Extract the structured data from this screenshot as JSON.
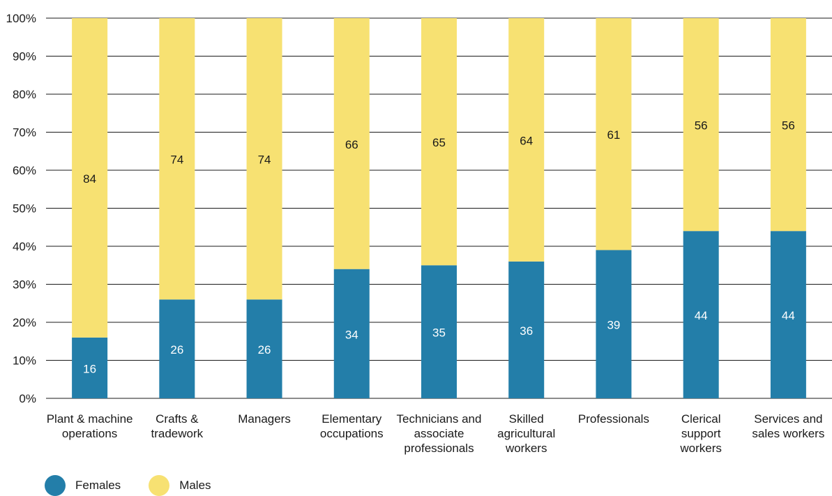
{
  "chart_data": {
    "type": "bar",
    "stacked": true,
    "categories": [
      [
        "Plant & machine",
        "operations"
      ],
      [
        "Crafts &",
        "tradework"
      ],
      [
        "Managers"
      ],
      [
        "Elementary",
        "occupations"
      ],
      [
        "Technicians and",
        "associate",
        "professionals"
      ],
      [
        "Skilled",
        "agricultural",
        "workers"
      ],
      [
        "Professionals"
      ],
      [
        "Clerical",
        "support",
        "workers"
      ],
      [
        "Services and",
        "sales workers"
      ]
    ],
    "series": [
      {
        "name": "Females",
        "color": "#237ea9",
        "label_color": "#ffffff",
        "values": [
          16,
          26,
          26,
          34,
          35,
          36,
          39,
          44,
          44
        ]
      },
      {
        "name": "Males",
        "color": "#f7e172",
        "label_color": "#1a1a1a",
        "values": [
          84,
          74,
          74,
          66,
          65,
          64,
          61,
          56,
          56
        ]
      }
    ],
    "ylim": [
      0,
      100
    ],
    "yticks": [
      "0%",
      "10%",
      "20%",
      "30%",
      "40%",
      "50%",
      "60%",
      "70%",
      "80%",
      "90%",
      "100%"
    ],
    "grid": true,
    "legend_position": "bottom-left"
  }
}
